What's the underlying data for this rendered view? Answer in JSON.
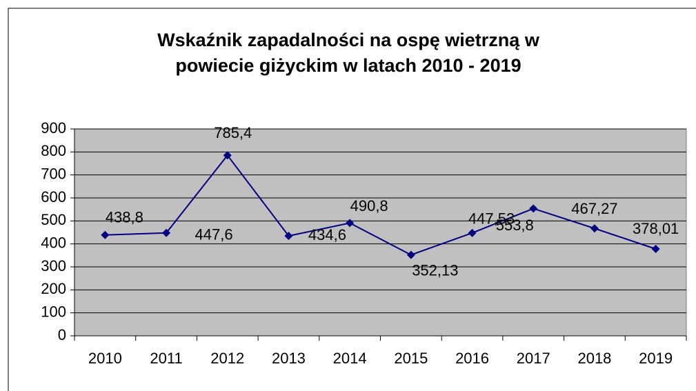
{
  "chart_data": {
    "type": "line",
    "title": [
      "Wskaźnik zapadalności na ospę wietrzną w",
      "powiecie giżyckim w latach 2010 - 2019"
    ],
    "categories": [
      "2010",
      "2011",
      "2012",
      "2013",
      "2014",
      "2015",
      "2016",
      "2017",
      "2018",
      "2019"
    ],
    "series": [
      {
        "name": null,
        "color": "#000080",
        "values": [
          438.8,
          447.6,
          785.4,
          434.6,
          490.8,
          352.13,
          447.53,
          553.8,
          467.27,
          378.01
        ],
        "value_labels": [
          "438,8",
          "447,6",
          "785,4",
          "434,6",
          "490,8",
          "352,13",
          "447,53",
          "553,8",
          "467,27",
          "378,01"
        ]
      }
    ],
    "ylim": [
      0,
      900
    ],
    "yticks": [
      0,
      100,
      200,
      300,
      400,
      500,
      600,
      700,
      800,
      900
    ],
    "grid": true,
    "plot_background": "#c0c0c0"
  }
}
